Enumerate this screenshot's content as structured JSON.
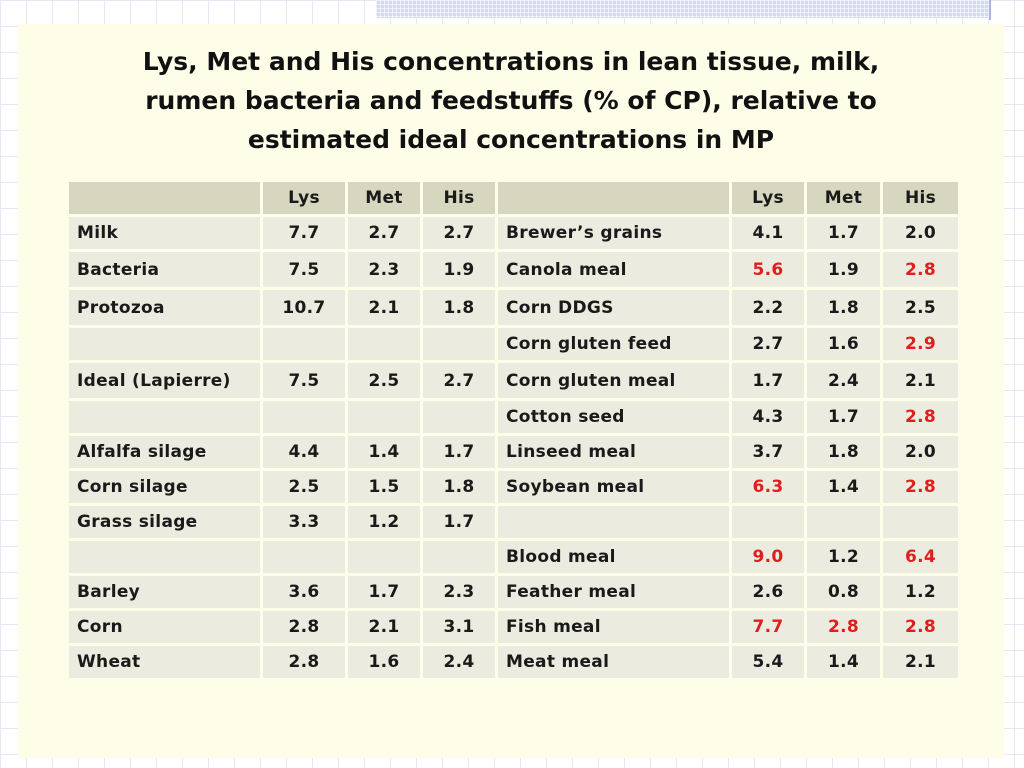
{
  "title_lines": [
    "Lys, Met and His concentrations in lean tissue, milk,",
    "rumen bacteria and feedstuffs (% of CP), relative to",
    "estimated ideal concentrations in MP"
  ],
  "table": {
    "headers": [
      "",
      "Lys",
      "Met",
      "His",
      "",
      "Lys",
      "Met",
      "His"
    ],
    "rows": [
      {
        "left_name": "Milk",
        "left": [
          "7.7",
          "2.7",
          "2.7"
        ],
        "right_name": "Brewer’s grains",
        "right": [
          "4.1",
          "1.7",
          "2.0"
        ],
        "right_highlight": [
          false,
          false,
          false
        ]
      },
      {
        "left_name": "Bacteria",
        "left": [
          "7.5",
          "2.3",
          "1.9"
        ],
        "right_name": "Canola meal",
        "right": [
          "5.6",
          "1.9",
          "2.8"
        ],
        "right_highlight": [
          true,
          false,
          true
        ]
      },
      {
        "left_name": "Protozoa",
        "left": [
          "10.7",
          "2.1",
          "1.8"
        ],
        "right_name": "Corn DDGS",
        "right": [
          "2.2",
          "1.8",
          "2.5"
        ],
        "right_highlight": [
          false,
          false,
          false
        ]
      },
      {
        "left_name": "",
        "left": [
          "",
          "",
          ""
        ],
        "right_name": "Corn gluten feed",
        "right": [
          "2.7",
          "1.6",
          "2.9"
        ],
        "right_highlight": [
          false,
          false,
          true
        ]
      },
      {
        "left_name": "Ideal (Lapierre)",
        "left": [
          "7.5",
          "2.5",
          "2.7"
        ],
        "right_name": "Corn gluten meal",
        "right": [
          "1.7",
          "2.4",
          "2.1"
        ],
        "right_highlight": [
          false,
          false,
          false
        ]
      },
      {
        "left_name": "",
        "left": [
          "",
          "",
          ""
        ],
        "right_name": "Cotton seed",
        "right": [
          "4.3",
          "1.7",
          "2.8"
        ],
        "right_highlight": [
          false,
          false,
          true
        ]
      },
      {
        "left_name": "Alfalfa silage",
        "left": [
          "4.4",
          "1.4",
          "1.7"
        ],
        "right_name": "Linseed meal",
        "right": [
          "3.7",
          "1.8",
          "2.0"
        ],
        "right_highlight": [
          false,
          false,
          false
        ]
      },
      {
        "left_name": "Corn silage",
        "left": [
          "2.5",
          "1.5",
          "1.8"
        ],
        "right_name": "Soybean meal",
        "right": [
          "6.3",
          "1.4",
          "2.8"
        ],
        "right_highlight": [
          true,
          false,
          true
        ]
      },
      {
        "left_name": "Grass silage",
        "left": [
          "3.3",
          "1.2",
          "1.7"
        ],
        "right_name": "",
        "right": [
          "",
          "",
          ""
        ],
        "right_highlight": [
          false,
          false,
          false
        ]
      },
      {
        "left_name": "",
        "left": [
          "",
          "",
          ""
        ],
        "right_name": "Blood meal",
        "right": [
          "9.0",
          "1.2",
          "6.4"
        ],
        "right_highlight": [
          true,
          false,
          true
        ]
      },
      {
        "left_name": "Barley",
        "left": [
          "3.6",
          "1.7",
          "2.3"
        ],
        "right_name": "Feather meal",
        "right": [
          "2.6",
          "0.8",
          "1.2"
        ],
        "right_highlight": [
          false,
          false,
          false
        ]
      },
      {
        "left_name": "Corn",
        "left": [
          "2.8",
          "2.1",
          "3.1"
        ],
        "right_name": "Fish meal",
        "right": [
          "7.7",
          "2.8",
          "2.8"
        ],
        "right_highlight": [
          true,
          true,
          true
        ]
      },
      {
        "left_name": "Wheat",
        "left": [
          "2.8",
          "1.6",
          "2.4"
        ],
        "right_name": "Meat meal",
        "right": [
          "5.4",
          "1.4",
          "2.1"
        ],
        "right_highlight": [
          false,
          false,
          false
        ]
      }
    ]
  },
  "colors": {
    "highlight": "#e11d1d",
    "slide_background": "#fdfde8",
    "header_cell": "#d7d7bf",
    "body_cell": "#ebebdf"
  }
}
